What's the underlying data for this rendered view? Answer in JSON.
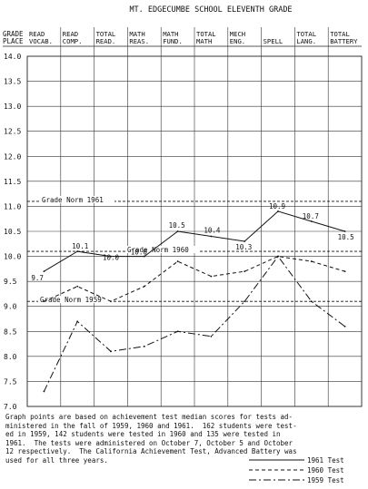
{
  "chart_data": {
    "type": "line",
    "title": "MT. EDGECUMBE SCHOOL ELEVENTH GRADE",
    "ylabel": [
      "GRADE",
      "PLACE"
    ],
    "ylim": [
      7.0,
      14.0
    ],
    "yticks": [
      "14.0",
      "13.5",
      "13.0",
      "12.5",
      "12.0",
      "11.5",
      "11.0",
      "10.5",
      "10.0",
      "9.5",
      "9.0",
      "8.5",
      "8.0",
      "7.5",
      "7.0"
    ],
    "categories": [
      [
        "READ",
        "VOCAB."
      ],
      [
        "READ",
        "COMP."
      ],
      [
        "TOTAL",
        "READ."
      ],
      [
        "MATH",
        "REAS."
      ],
      [
        "MATH",
        "FUND."
      ],
      [
        "TOTAL",
        "MATH"
      ],
      [
        "MECH",
        "ENG."
      ],
      [
        "",
        "SPELL"
      ],
      [
        "TOTAL",
        "LANG."
      ],
      [
        "TOTAL",
        "BATTERY"
      ]
    ],
    "series": [
      {
        "name": "1961 Test",
        "style": "solid",
        "values": [
          9.7,
          10.1,
          10.0,
          10.0,
          10.5,
          10.4,
          10.3,
          10.9,
          10.7,
          10.5
        ],
        "labels": [
          "9.7",
          "10.1",
          "10.0",
          "10.0",
          "10.5",
          "10.4",
          "10.3",
          "10.9",
          "10.7",
          "10.5"
        ]
      },
      {
        "name": "1960 Test",
        "style": "dashed",
        "values": [
          9.1,
          9.4,
          9.1,
          9.4,
          9.9,
          9.6,
          9.7,
          10.0,
          9.9,
          9.7
        ]
      },
      {
        "name": "1959 Test",
        "style": "dashdot",
        "values": [
          7.3,
          8.7,
          8.1,
          8.2,
          8.5,
          8.4,
          9.1,
          10.0,
          9.1,
          8.6
        ]
      }
    ],
    "reference_lines": [
      {
        "label": "Grade Norm 1961",
        "value": 11.1
      },
      {
        "label": "Grade Norm 1960",
        "value": 10.1
      },
      {
        "label": "Grade Norm 1959",
        "value": 9.1
      }
    ]
  },
  "caption": "Graph points are based on achievement test median scores for tests ad-\nministered in the fall of 1959, 1960 and 1961.  162 students were test-\ned in 1959, 142 students were tested in 1960 and 135 were tested in\n1961.  The tests were administered on October 7, October 5 and October\n12 respectively.  The California Achievement Test, Advanced Battery was\nused for all three years."
}
